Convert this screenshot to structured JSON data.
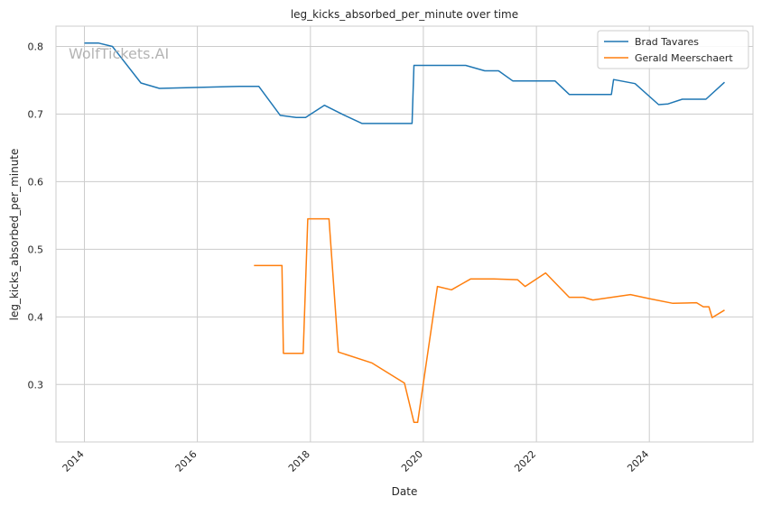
{
  "watermark": "WolfTickets.AI",
  "chart_data": {
    "type": "line",
    "title": "leg_kicks_absorbed_per_minute over time",
    "xlabel": "Date",
    "ylabel": "leg_kicks_absorbed_per_minute",
    "xlim": [
      "2013-07-01",
      "2025-11-01"
    ],
    "ylim": [
      0.215,
      0.83
    ],
    "x_ticks": [
      "2014",
      "2016",
      "2018",
      "2020",
      "2022",
      "2024"
    ],
    "y_ticks": [
      "0.3",
      "0.4",
      "0.5",
      "0.6",
      "0.7",
      "0.8"
    ],
    "grid": true,
    "legend_position": "top-right",
    "series": [
      {
        "name": "Brad Tavares",
        "color": "#1f77b4",
        "points": [
          [
            "2014-01-01",
            0.805
          ],
          [
            "2014-04-01",
            0.805
          ],
          [
            "2014-07-01",
            0.8
          ],
          [
            "2015-01-01",
            0.746
          ],
          [
            "2015-05-01",
            0.738
          ],
          [
            "2016-10-01",
            0.741
          ],
          [
            "2017-02-01",
            0.741
          ],
          [
            "2017-06-20",
            0.698
          ],
          [
            "2017-10-01",
            0.695
          ],
          [
            "2017-12-01",
            0.695
          ],
          [
            "2018-04-01",
            0.713
          ],
          [
            "2018-08-01",
            0.699
          ],
          [
            "2018-12-01",
            0.686
          ],
          [
            "2019-10-20",
            0.686
          ],
          [
            "2019-11-01",
            0.772
          ],
          [
            "2020-10-01",
            0.772
          ],
          [
            "2021-02-01",
            0.764
          ],
          [
            "2021-05-01",
            0.764
          ],
          [
            "2021-08-01",
            0.749
          ],
          [
            "2022-05-01",
            0.749
          ],
          [
            "2022-08-01",
            0.729
          ],
          [
            "2023-05-01",
            0.729
          ],
          [
            "2023-05-15",
            0.751
          ],
          [
            "2023-10-01",
            0.745
          ],
          [
            "2024-03-01",
            0.714
          ],
          [
            "2024-05-01",
            0.715
          ],
          [
            "2024-08-01",
            0.722
          ],
          [
            "2025-01-01",
            0.722
          ],
          [
            "2025-05-01",
            0.747
          ]
        ]
      },
      {
        "name": "Gerald Meerschaert",
        "color": "#ff7f0e",
        "points": [
          [
            "2017-01-01",
            0.476
          ],
          [
            "2017-07-01",
            0.476
          ],
          [
            "2017-07-10",
            0.346
          ],
          [
            "2017-11-15",
            0.346
          ],
          [
            "2017-12-15",
            0.545
          ],
          [
            "2018-05-01",
            0.545
          ],
          [
            "2018-07-01",
            0.348
          ],
          [
            "2019-02-01",
            0.332
          ],
          [
            "2019-09-01",
            0.302
          ],
          [
            "2019-11-01",
            0.244
          ],
          [
            "2019-11-25",
            0.244
          ],
          [
            "2020-04-01",
            0.445
          ],
          [
            "2020-07-01",
            0.44
          ],
          [
            "2020-11-01",
            0.456
          ],
          [
            "2021-04-01",
            0.456
          ],
          [
            "2021-09-01",
            0.455
          ],
          [
            "2021-10-20",
            0.445
          ],
          [
            "2022-03-01",
            0.465
          ],
          [
            "2022-08-01",
            0.429
          ],
          [
            "2022-11-01",
            0.429
          ],
          [
            "2023-01-01",
            0.425
          ],
          [
            "2023-09-01",
            0.433
          ],
          [
            "2024-01-01",
            0.427
          ],
          [
            "2024-06-01",
            0.42
          ],
          [
            "2024-11-01",
            0.421
          ],
          [
            "2024-12-15",
            0.415
          ],
          [
            "2025-01-20",
            0.415
          ],
          [
            "2025-02-10",
            0.399
          ],
          [
            "2025-05-01",
            0.41
          ]
        ]
      }
    ]
  }
}
